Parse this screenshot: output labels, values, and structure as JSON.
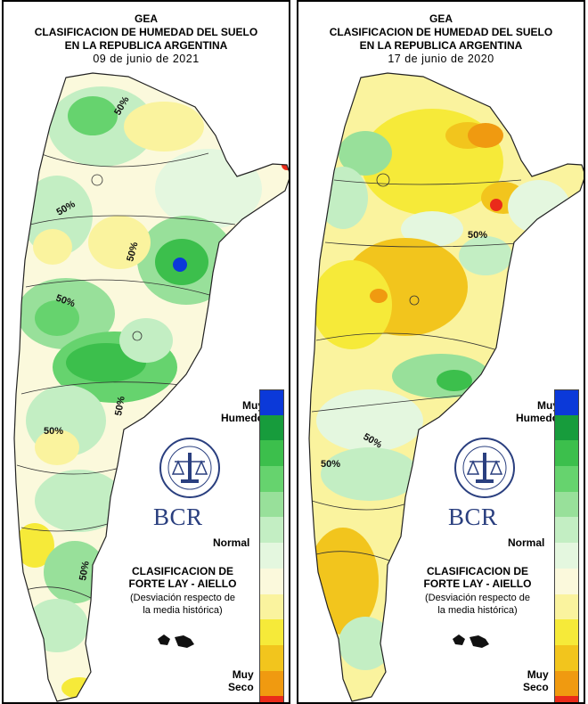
{
  "maps": [
    {
      "org": "GEA",
      "title_line1": "CLASIFICACION DE HUMEDAD DEL SUELO",
      "title_line2": "EN LA REPUBLICA ARGENTINA",
      "date": "09 de junio de 2021",
      "contour_labels": [
        "50%",
        "50%",
        "50%",
        "50%",
        "50%",
        "50%",
        "50%"
      ]
    },
    {
      "org": "GEA",
      "title_line1": "CLASIFICACION DE HUMEDAD DEL SUELO",
      "title_line2": "EN LA REPUBLICA ARGENTINA",
      "date": "17 de junio de 2020",
      "contour_labels": [
        "50%",
        "50%",
        "50%"
      ]
    }
  ],
  "legend": {
    "wet_label_1": "Muy",
    "wet_label_2": "Humedo",
    "normal_label": "Normal",
    "dry_label_1": "Muy",
    "dry_label_2": "Seco",
    "scale_colors": [
      "#0b39d9",
      "#179c3c",
      "#3cbf4c",
      "#66d36e",
      "#98e09a",
      "#c3eec3",
      "#e4f7df",
      "#fbf9dc",
      "#faf39e",
      "#f6ea39",
      "#f2c51d",
      "#f09a10",
      "#ea2b1a"
    ]
  },
  "logo": {
    "name": "BCR",
    "seal_text": "BOLSA DE COMERCIO DE ROSARIO"
  },
  "classification": {
    "title_line1": "CLASIFICACION DE",
    "title_line2": "FORTE LAY - AIELLO",
    "subtitle_line1": "(Desviación respecto de",
    "subtitle_line2": "la media histórica)"
  }
}
